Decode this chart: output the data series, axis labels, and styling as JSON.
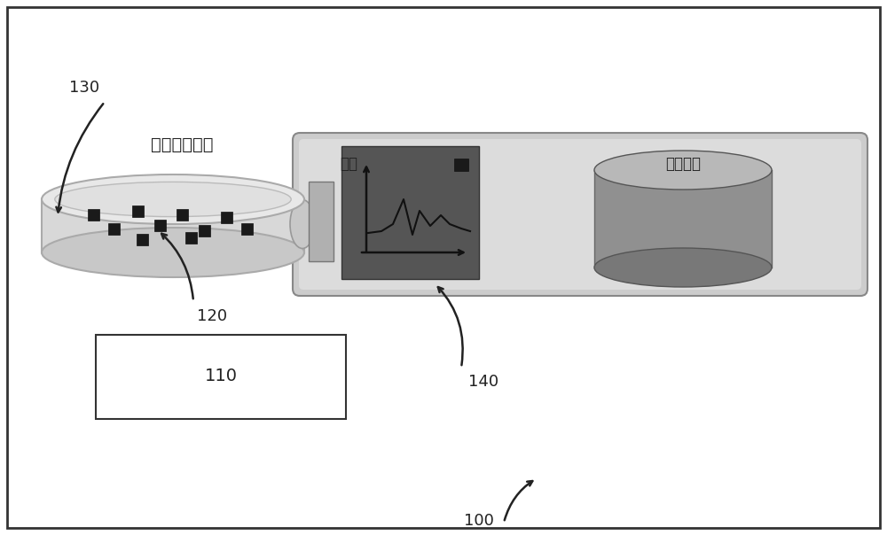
{
  "bg_color": "#ffffff",
  "outer_border_color": "#333333",
  "label_130": "130",
  "label_120": "120",
  "label_110": "110",
  "label_140": "140",
  "label_100": "100",
  "text_yijie": "一阶窗口算子",
  "text_sheng": "升阶",
  "text_gaojie_op": "高阶算子",
  "font_size_labels": 13,
  "font_size_chinese": 12
}
